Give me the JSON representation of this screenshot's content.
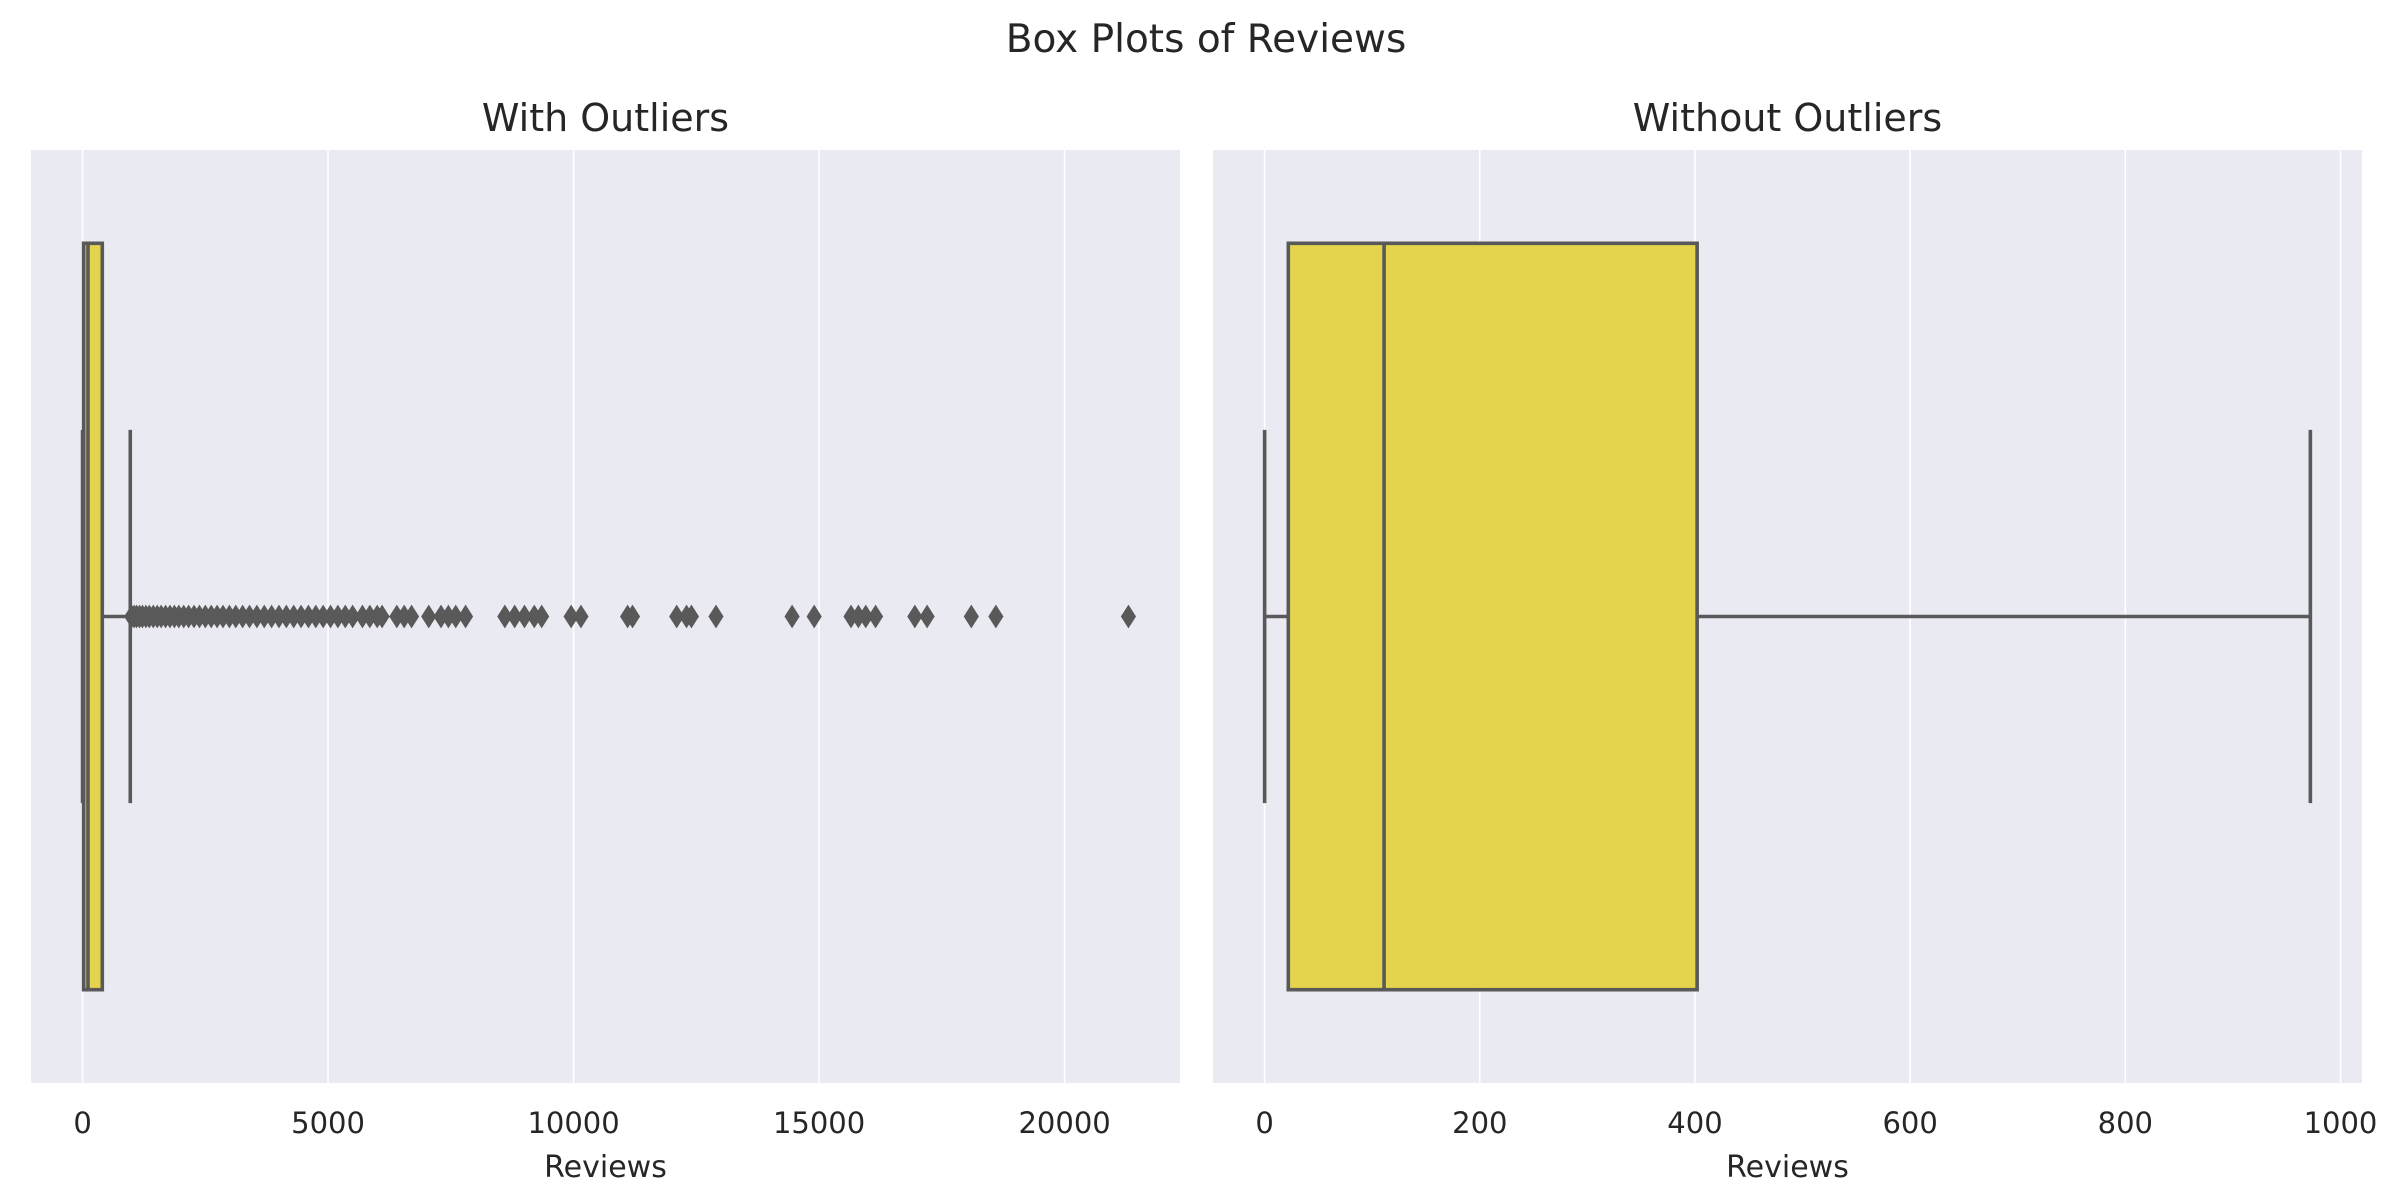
{
  "figure": {
    "title": "Box Plots of Reviews"
  },
  "colors": {
    "box_fill": "#e4d44d",
    "line": "#595959",
    "panel_bg": "#eaeaf2",
    "grid": "#ffffff"
  },
  "chart_data": [
    {
      "type": "box",
      "title": "With Outliers",
      "xlabel": "Reviews",
      "ylabel": "",
      "xlim": [
        -1050,
        22350
      ],
      "xticks": [
        0,
        5000,
        10000,
        15000,
        20000
      ],
      "xtick_labels": [
        "0",
        "5000",
        "10000",
        "15000",
        "20000"
      ],
      "grid": "vertical",
      "box": {
        "whisker_low": 0,
        "q1": 22,
        "median": 111,
        "q3": 402,
        "whisker_high": 972
      },
      "outliers": [
        1000,
        1050,
        1100,
        1160,
        1220,
        1290,
        1360,
        1440,
        1520,
        1600,
        1690,
        1780,
        1870,
        1960,
        2060,
        2160,
        2270,
        2380,
        2500,
        2620,
        2740,
        2860,
        2990,
        3120,
        3260,
        3400,
        3550,
        3700,
        3850,
        4000,
        4150,
        4300,
        4450,
        4600,
        4750,
        4900,
        5050,
        5200,
        5350,
        5500,
        5700,
        5850,
        6000,
        6100,
        6400,
        6550,
        6700,
        7050,
        7300,
        7450,
        7600,
        7800,
        8600,
        8800,
        9000,
        9200,
        9350,
        9950,
        10150,
        11100,
        11200,
        12100,
        12300,
        12400,
        12900,
        14450,
        14900,
        15650,
        15800,
        15950,
        16150,
        16950,
        17200,
        18100,
        18600,
        21300
      ]
    },
    {
      "type": "box",
      "title": "Without Outliers",
      "xlabel": "Reviews",
      "ylabel": "",
      "xlim": [
        -48,
        1020
      ],
      "xticks": [
        0,
        200,
        400,
        600,
        800,
        1000
      ],
      "xtick_labels": [
        "0",
        "200",
        "400",
        "600",
        "800",
        "1000"
      ],
      "grid": "vertical",
      "box": {
        "whisker_low": 0,
        "q1": 22,
        "median": 111,
        "q3": 402,
        "whisker_high": 972
      },
      "outliers": []
    }
  ]
}
